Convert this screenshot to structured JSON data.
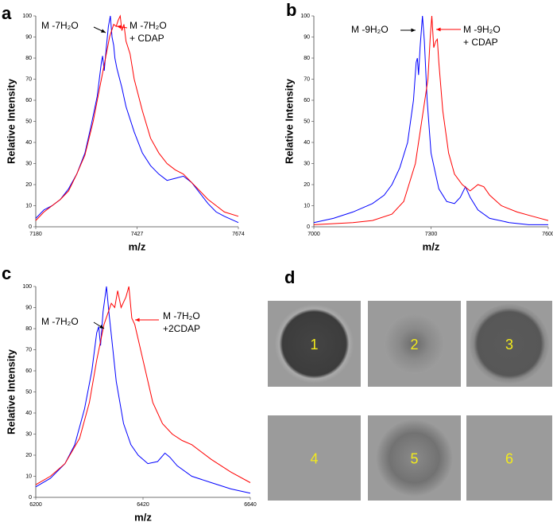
{
  "chart_data": [
    {
      "type": "line",
      "panel": "a",
      "ylabel": "Relative Intensity",
      "xlabel": "m/z",
      "xlim": [
        7180,
        7674
      ],
      "xticks": [
        7180,
        7427,
        7674
      ],
      "ylim": [
        0,
        100
      ],
      "yticks": [
        0,
        10,
        20,
        30,
        40,
        50,
        60,
        70,
        80,
        90,
        100
      ],
      "series": [
        {
          "color": "#0000ff",
          "x": [
            7180,
            7200,
            7220,
            7240,
            7260,
            7280,
            7300,
            7315,
            7330,
            7340,
            7343,
            7347,
            7352,
            7357,
            7362,
            7366,
            7370,
            7373,
            7378,
            7390,
            7400,
            7420,
            7440,
            7460,
            7480,
            7500,
            7520,
            7540,
            7560,
            7580,
            7600,
            7620,
            7640,
            7674
          ],
          "values": [
            4,
            8,
            10,
            13,
            18,
            25,
            35,
            48,
            62,
            78,
            81,
            74,
            85,
            95,
            100,
            90,
            86,
            80,
            75,
            66,
            57,
            45,
            35,
            29,
            25,
            22,
            23,
            24,
            21,
            16,
            11,
            7,
            5,
            2
          ]
        },
        {
          "color": "#ff0000",
          "x": [
            7180,
            7200,
            7220,
            7240,
            7260,
            7280,
            7300,
            7320,
            7335,
            7350,
            7360,
            7370,
            7376,
            7381,
            7386,
            7390,
            7395,
            7400,
            7410,
            7420,
            7440,
            7460,
            7480,
            7500,
            7520,
            7540,
            7560,
            7580,
            7600,
            7620,
            7640,
            7674
          ],
          "values": [
            3,
            7,
            10,
            13,
            17,
            25,
            34,
            50,
            65,
            80,
            90,
            96,
            95,
            98,
            100,
            93,
            96,
            88,
            82,
            70,
            55,
            42,
            35,
            30,
            27,
            25,
            21,
            17,
            13,
            10,
            7,
            5
          ]
        }
      ],
      "annotations": [
        {
          "lines": [
            "M -7H₂O"
          ],
          "color": "#000000"
        },
        {
          "lines": [
            "M -7H₂O",
            "+ CDAP"
          ],
          "color": "#ff0000"
        }
      ]
    },
    {
      "type": "line",
      "panel": "b",
      "ylabel": "Relative Intensity",
      "xlabel": "m/z",
      "xlim": [
        7000,
        7600
      ],
      "xticks": [
        7000,
        7300,
        7600
      ],
      "ylim": [
        0,
        100
      ],
      "yticks": [
        0,
        10,
        20,
        30,
        40,
        50,
        60,
        70,
        80,
        90,
        100
      ],
      "series": [
        {
          "color": "#0000ff",
          "x": [
            7000,
            7050,
            7100,
            7150,
            7180,
            7200,
            7220,
            7240,
            7255,
            7262,
            7265,
            7268,
            7272,
            7278,
            7283,
            7290,
            7300,
            7320,
            7340,
            7360,
            7375,
            7388,
            7400,
            7420,
            7450,
            7500,
            7550,
            7600
          ],
          "values": [
            2,
            4,
            7,
            11,
            15,
            20,
            28,
            40,
            60,
            78,
            80,
            72,
            85,
            100,
            88,
            60,
            35,
            18,
            12,
            11,
            14,
            19,
            14,
            8,
            4,
            2,
            1,
            1
          ]
        },
        {
          "color": "#ff0000",
          "x": [
            7000,
            7100,
            7150,
            7200,
            7230,
            7260,
            7280,
            7292,
            7298,
            7302,
            7307,
            7312,
            7316,
            7320,
            7330,
            7345,
            7360,
            7380,
            7400,
            7420,
            7435,
            7450,
            7480,
            7520,
            7560,
            7600
          ],
          "values": [
            1,
            2,
            3,
            6,
            12,
            30,
            55,
            70,
            90,
            100,
            85,
            88,
            89,
            78,
            55,
            35,
            25,
            20,
            17,
            20,
            19,
            15,
            10,
            7,
            5,
            3
          ]
        }
      ],
      "annotations": [
        {
          "lines": [
            "M -9H₂O"
          ],
          "color": "#000000"
        },
        {
          "lines": [
            "M -9H₂O",
            "+ CDAP"
          ],
          "color": "#ff0000"
        }
      ]
    },
    {
      "type": "line",
      "panel": "c",
      "ylabel": "Relative Intensity",
      "xlabel": "m/z",
      "xlim": [
        6200,
        6640
      ],
      "xticks": [
        6200,
        6420,
        6640
      ],
      "ylim": [
        0,
        100
      ],
      "yticks": [
        0,
        10,
        20,
        30,
        40,
        50,
        60,
        70,
        80,
        90,
        100
      ],
      "series": [
        {
          "color": "#0000ff",
          "x": [
            6200,
            6230,
            6260,
            6280,
            6300,
            6315,
            6325,
            6329,
            6333,
            6338,
            6345,
            6350,
            6356,
            6365,
            6380,
            6395,
            6410,
            6430,
            6450,
            6465,
            6475,
            6490,
            6520,
            6560,
            6600,
            6640
          ],
          "values": [
            5,
            9,
            16,
            25,
            42,
            60,
            78,
            81,
            72,
            88,
            100,
            88,
            75,
            55,
            35,
            25,
            20,
            16,
            17,
            21,
            19,
            15,
            10,
            7,
            4,
            2
          ]
        },
        {
          "color": "#ff0000",
          "x": [
            6200,
            6230,
            6260,
            6290,
            6310,
            6325,
            6340,
            6355,
            6362,
            6368,
            6375,
            6385,
            6391,
            6397,
            6403,
            6410,
            6425,
            6440,
            6460,
            6480,
            6500,
            6520,
            6560,
            6600,
            6640
          ],
          "values": [
            6,
            10,
            16,
            28,
            45,
            65,
            82,
            92,
            90,
            98,
            90,
            95,
            100,
            85,
            82,
            75,
            60,
            45,
            35,
            30,
            27,
            25,
            18,
            12,
            7
          ]
        }
      ],
      "annotations": [
        {
          "lines": [
            "M -7H₂O"
          ],
          "color": "#000000"
        },
        {
          "lines": [
            "M -7H₂O",
            "+2CDAP"
          ],
          "color": "#ff0000"
        }
      ]
    }
  ],
  "panel_d": {
    "label": "d",
    "tiles": [
      "1",
      "2",
      "3",
      "4",
      "5",
      "6"
    ]
  }
}
